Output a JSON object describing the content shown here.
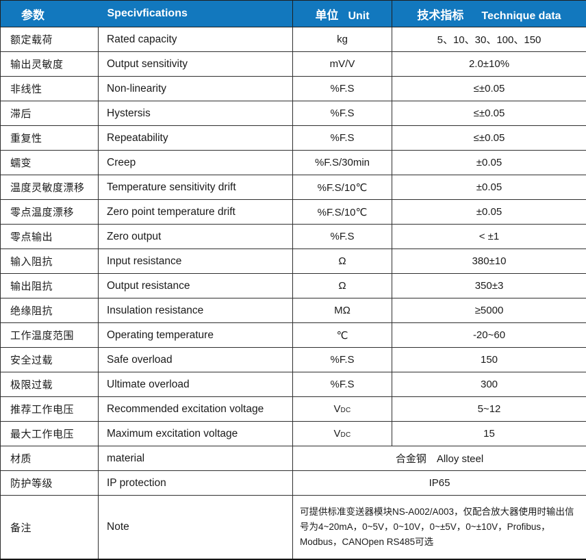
{
  "table": {
    "header": {
      "param_zh": "参数",
      "spec_en": "Specivfications",
      "unit_zh": "单位",
      "unit_en": "Unit",
      "tech_zh": "技术指标",
      "tech_en": "Technique data"
    },
    "rows": [
      {
        "zh": "额定载荷",
        "en": "Rated capacity",
        "unit": "kg",
        "value": "5、10、30、100、150"
      },
      {
        "zh": "输出灵敏度",
        "en": "Output sensitivity",
        "unit": "mV/V",
        "value": "2.0±10%"
      },
      {
        "zh": "非线性",
        "en": "Non-linearity",
        "unit": "%F.S",
        "value": "≤±0.05"
      },
      {
        "zh": "滞后",
        "en": "Hystersis",
        "unit": "%F.S",
        "value": "≤±0.05"
      },
      {
        "zh": "重复性",
        "en": "Repeatability",
        "unit": "%F.S",
        "value": "≤±0.05"
      },
      {
        "zh": "蠕变",
        "en": "Creep",
        "unit": "%F.S/30min",
        "value": "±0.05"
      },
      {
        "zh": "温度灵敏度漂移",
        "en": "Temperature sensitivity drift",
        "unit": "%F.S/10℃",
        "value": "±0.05"
      },
      {
        "zh": "零点温度漂移",
        "en": "Zero point temperature drift",
        "unit": "%F.S/10℃",
        "value": "±0.05"
      },
      {
        "zh": "零点输出",
        "en": "Zero output",
        "unit": "%F.S",
        "value": "< ±1"
      },
      {
        "zh": "输入阻抗",
        "en": "Input resistance",
        "unit": "Ω",
        "value": "380±10"
      },
      {
        "zh": "输出阻抗",
        "en": "Output resistance",
        "unit": "Ω",
        "value": "350±3"
      },
      {
        "zh": "绝缘阻抗",
        "en": "Insulation resistance",
        "unit": "MΩ",
        "value": "≥5000"
      },
      {
        "zh": "工作温度范围",
        "en": "Operating temperature",
        "unit": "℃",
        "value": "-20~60"
      },
      {
        "zh": "安全过载",
        "en": "Safe overload",
        "unit": "%F.S",
        "value": "150"
      },
      {
        "zh": "极限过载",
        "en": "Ultimate overload",
        "unit": "%F.S",
        "value": "300"
      },
      {
        "zh": "推荐工作电压",
        "en": "Recommended excitation voltage",
        "unit": "V",
        "unit_sub": "DC",
        "value": "5~12"
      },
      {
        "zh": "最大工作电压",
        "en": "Maximum excitation voltage",
        "unit": "V",
        "unit_sub": "DC",
        "value": "15"
      },
      {
        "zh": "材质",
        "en": "material",
        "merged": "合金钢　Alloy steel"
      },
      {
        "zh": "防护等级",
        "en": "IP protection",
        "merged": "IP65"
      },
      {
        "zh": "备注",
        "en": "Note",
        "note": true,
        "merged": "可提供标准变送器模块NS-A002/A003，仅配合放大器使用时输出信号为4~20mA，0~5V，0~10V，0~±5V，0~±10V，Profibus，Modbus，CANOpen RS485可选"
      }
    ],
    "colors": {
      "header_bg": "#1278be",
      "header_text": "#ffffff",
      "border": "#2e2e2e",
      "body_text": "#1a1a1a"
    }
  }
}
